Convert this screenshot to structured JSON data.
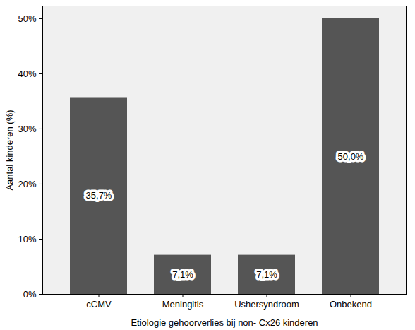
{
  "chart_data": {
    "type": "bar",
    "x_label": "Etiologie gehoorverlies bij non- Cx26 kinderen",
    "y_label": "Aantal kinderen (%)",
    "categories": [
      "cCMV",
      "Meningitis",
      "Ushersyndroom",
      "Onbekend"
    ],
    "values": [
      35.7,
      7.1,
      7.1,
      50.0
    ],
    "value_labels": [
      "35,7%",
      "7,1%",
      "7,1%",
      "50,0%"
    ],
    "data_labels": true,
    "color": "#555555",
    "ylim": [
      0,
      52.3
    ],
    "yticks": [
      {
        "value": 0,
        "label": "0%"
      },
      {
        "value": 10,
        "label": "10%"
      },
      {
        "value": 20,
        "label": "20%"
      },
      {
        "value": 30,
        "label": "30%"
      },
      {
        "value": 40,
        "label": "40%"
      },
      {
        "value": 50,
        "label": "50%"
      }
    ],
    "grid": false
  }
}
